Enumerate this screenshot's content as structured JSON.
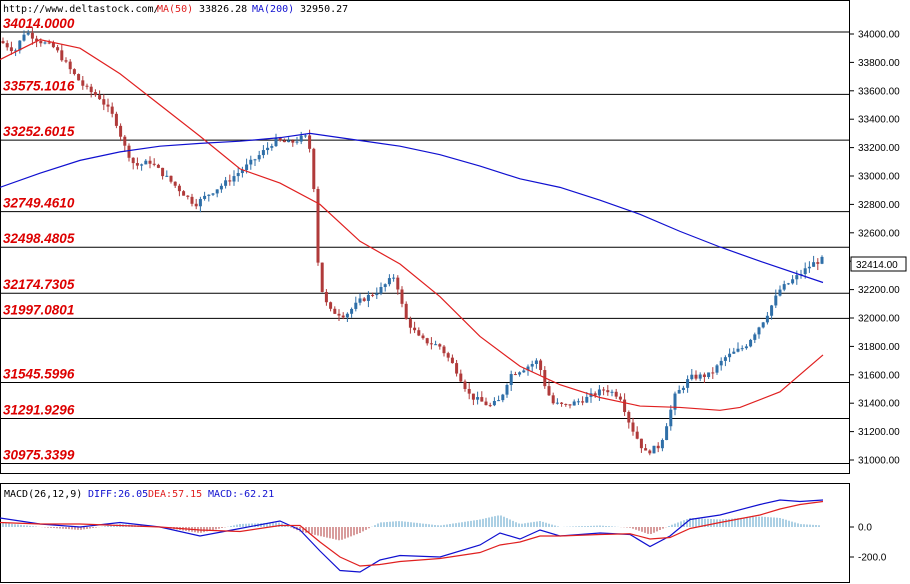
{
  "header": {
    "source": "http://www.deltastock.com/",
    "ma50_label": "MA(50)",
    "ma50_value": "33826.28",
    "ma200_label": "MA(200)",
    "ma200_value": "32950.27"
  },
  "macd_header": {
    "label": "MACD(26,12,9)",
    "diff": "DIFF:26.05",
    "dea": "DEA:57.15",
    "macd": "MACD:-62.21"
  },
  "colors": {
    "up": "#2f6fa8",
    "down": "#b03a3a",
    "ma50": "#e02020",
    "ma200": "#1010d0",
    "level_text": "#dd0000",
    "hist_up": "#5aa0c8",
    "hist_down": "#b03a3a"
  },
  "chart_data": [
    {
      "type": "line",
      "title": "",
      "ylim": [
        30900,
        34200
      ],
      "yticks": [
        "34000.00",
        "33800.00",
        "33600.00",
        "33400.00",
        "33200.00",
        "33000.00",
        "32800.00",
        "32600.00",
        "32400.00",
        "32200.00",
        "32000.00",
        "31800.00",
        "31600.00",
        "31400.00",
        "31200.00",
        "31000.00"
      ],
      "last_price": "32414.00",
      "levels": [
        "34014.0000",
        "33575.1016",
        "33252.6015",
        "32749.4610",
        "32498.4805",
        "32174.7305",
        "31997.0801",
        "31545.5996",
        "31291.9296",
        "30975.3399"
      ],
      "candles_note": "price path used to generate candlesticks",
      "price_path": [
        [
          0,
          33950
        ],
        [
          15,
          33880
        ],
        [
          25,
          34020
        ],
        [
          40,
          33950
        ],
        [
          55,
          33900
        ],
        [
          70,
          33750
        ],
        [
          85,
          33620
        ],
        [
          100,
          33550
        ],
        [
          115,
          33400
        ],
        [
          125,
          33200
        ],
        [
          135,
          33070
        ],
        [
          150,
          33100
        ],
        [
          165,
          33000
        ],
        [
          180,
          32900
        ],
        [
          195,
          32800
        ],
        [
          210,
          32880
        ],
        [
          225,
          32950
        ],
        [
          245,
          33060
        ],
        [
          260,
          33150
        ],
        [
          275,
          33250
        ],
        [
          290,
          33230
        ],
        [
          305,
          33280
        ],
        [
          312,
          33150
        ],
        [
          318,
          32400
        ],
        [
          323,
          32150
        ],
        [
          330,
          32050
        ],
        [
          345,
          32020
        ],
        [
          360,
          32120
        ],
        [
          380,
          32200
        ],
        [
          395,
          32300
        ],
        [
          405,
          32000
        ],
        [
          420,
          31850
        ],
        [
          440,
          31800
        ],
        [
          455,
          31650
        ],
        [
          470,
          31450
        ],
        [
          490,
          31380
        ],
        [
          500,
          31420
        ],
        [
          510,
          31600
        ],
        [
          525,
          31650
        ],
        [
          538,
          31700
        ],
        [
          546,
          31500
        ],
        [
          553,
          31400
        ],
        [
          565,
          31380
        ],
        [
          585,
          31430
        ],
        [
          605,
          31500
        ],
        [
          620,
          31450
        ],
        [
          630,
          31250
        ],
        [
          645,
          31050
        ],
        [
          660,
          31100
        ],
        [
          675,
          31450
        ],
        [
          690,
          31580
        ],
        [
          710,
          31600
        ],
        [
          725,
          31720
        ],
        [
          745,
          31800
        ],
        [
          765,
          32000
        ],
        [
          780,
          32200
        ],
        [
          795,
          32280
        ],
        [
          812,
          32380
        ],
        [
          823,
          32414
        ]
      ],
      "series": [
        {
          "name": "MA(50)",
          "points": [
            [
              0,
              33820
            ],
            [
              40,
              33960
            ],
            [
              80,
              33900
            ],
            [
              120,
              33720
            ],
            [
              160,
              33500
            ],
            [
              200,
              33280
            ],
            [
              240,
              33050
            ],
            [
              280,
              32950
            ],
            [
              320,
              32800
            ],
            [
              360,
              32540
            ],
            [
              400,
              32380
            ],
            [
              440,
              32150
            ],
            [
              480,
              31870
            ],
            [
              520,
              31660
            ],
            [
              560,
              31530
            ],
            [
              600,
              31440
            ],
            [
              640,
              31380
            ],
            [
              680,
              31370
            ],
            [
              720,
              31350
            ],
            [
              740,
              31370
            ],
            [
              780,
              31480
            ],
            [
              823,
              31740
            ]
          ]
        },
        {
          "name": "MA(200)",
          "points": [
            [
              0,
              32920
            ],
            [
              40,
              33020
            ],
            [
              80,
              33110
            ],
            [
              120,
              33170
            ],
            [
              160,
              33210
            ],
            [
              200,
              33230
            ],
            [
              240,
              33245
            ],
            [
              280,
              33270
            ],
            [
              310,
              33300
            ],
            [
              360,
              33250
            ],
            [
              400,
              33210
            ],
            [
              440,
              33150
            ],
            [
              480,
              33070
            ],
            [
              520,
              32980
            ],
            [
              560,
              32920
            ],
            [
              600,
              32830
            ],
            [
              640,
              32730
            ],
            [
              680,
              32610
            ],
            [
              720,
              32500
            ],
            [
              760,
              32400
            ],
            [
              823,
              32250
            ]
          ]
        }
      ]
    },
    {
      "type": "line",
      "title": "MACD(26,12,9)",
      "ylim": [
        -300,
        240
      ],
      "yticks": [
        "0.0",
        "-200.0"
      ],
      "series": [
        {
          "name": "DIFF",
          "points": [
            [
              0,
              60
            ],
            [
              40,
              20
            ],
            [
              80,
              0
            ],
            [
              120,
              30
            ],
            [
              160,
              0
            ],
            [
              200,
              -60
            ],
            [
              240,
              -10
            ],
            [
              280,
              40
            ],
            [
              300,
              -20
            ],
            [
              320,
              -160
            ],
            [
              340,
              -290
            ],
            [
              360,
              -300
            ],
            [
              380,
              -220
            ],
            [
              400,
              -190
            ],
            [
              440,
              -200
            ],
            [
              480,
              -120
            ],
            [
              500,
              -40
            ],
            [
              520,
              -80
            ],
            [
              540,
              -20
            ],
            [
              560,
              -60
            ],
            [
              600,
              -40
            ],
            [
              630,
              -50
            ],
            [
              650,
              -130
            ],
            [
              670,
              -60
            ],
            [
              690,
              50
            ],
            [
              720,
              80
            ],
            [
              760,
              150
            ],
            [
              780,
              180
            ],
            [
              800,
              170
            ],
            [
              823,
              180
            ]
          ]
        },
        {
          "name": "DEA",
          "points": [
            [
              0,
              30
            ],
            [
              40,
              20
            ],
            [
              80,
              20
            ],
            [
              120,
              10
            ],
            [
              160,
              0
            ],
            [
              200,
              -20
            ],
            [
              240,
              -30
            ],
            [
              280,
              10
            ],
            [
              300,
              10
            ],
            [
              320,
              -100
            ],
            [
              340,
              -200
            ],
            [
              360,
              -260
            ],
            [
              380,
              -250
            ],
            [
              400,
              -230
            ],
            [
              440,
              -210
            ],
            [
              480,
              -170
            ],
            [
              500,
              -120
            ],
            [
              520,
              -100
            ],
            [
              540,
              -60
            ],
            [
              560,
              -60
            ],
            [
              600,
              -50
            ],
            [
              630,
              -45
            ],
            [
              650,
              -80
            ],
            [
              670,
              -70
            ],
            [
              690,
              -10
            ],
            [
              720,
              30
            ],
            [
              760,
              80
            ],
            [
              780,
              120
            ],
            [
              800,
              150
            ],
            [
              823,
              170
            ]
          ]
        }
      ]
    }
  ]
}
